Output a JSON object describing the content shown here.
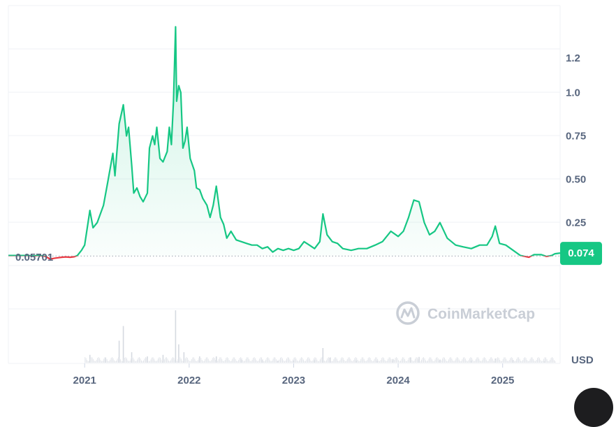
{
  "chart_data": {
    "type": "area",
    "y_ticks": [
      "1.2",
      "1.0",
      "0.75",
      "0.50",
      "0.25"
    ],
    "y_tick_values": [
      1.2,
      1.0,
      0.75,
      0.5,
      0.25
    ],
    "x_ticks": [
      "2021",
      "2022",
      "2023",
      "2024",
      "2025"
    ],
    "x_tick_values": [
      2021.0,
      2022.0,
      2023.0,
      2024.0,
      2025.0
    ],
    "xlim": [
      2020.27,
      2025.55
    ],
    "ylim": [
      -0.5,
      1.45
    ],
    "baseline_value": 0.05701,
    "baseline_label": "0.05701",
    "current_value": 0.074,
    "current_label": "0.074",
    "currency": "USD",
    "grid": true,
    "colors": {
      "up": "#16c784",
      "down": "#ea3943",
      "fill": "#16c784",
      "badge": "#16c784"
    },
    "price": [
      [
        2020.27,
        0.06
      ],
      [
        2020.45,
        0.06
      ],
      [
        2020.52,
        0.058
      ],
      [
        2020.56,
        0.06
      ],
      [
        2020.62,
        0.056
      ],
      [
        2020.67,
        0.04
      ],
      [
        2020.72,
        0.045
      ],
      [
        2020.78,
        0.05
      ],
      [
        2020.82,
        0.052
      ],
      [
        2020.86,
        0.05
      ],
      [
        2020.9,
        0.053
      ],
      [
        2020.93,
        0.06
      ],
      [
        2020.97,
        0.09
      ],
      [
        2021.0,
        0.12
      ],
      [
        2021.05,
        0.32
      ],
      [
        2021.08,
        0.22
      ],
      [
        2021.12,
        0.25
      ],
      [
        2021.18,
        0.35
      ],
      [
        2021.22,
        0.48
      ],
      [
        2021.27,
        0.65
      ],
      [
        2021.29,
        0.52
      ],
      [
        2021.33,
        0.82
      ],
      [
        2021.37,
        0.93
      ],
      [
        2021.4,
        0.75
      ],
      [
        2021.42,
        0.8
      ],
      [
        2021.45,
        0.58
      ],
      [
        2021.47,
        0.42
      ],
      [
        2021.5,
        0.45
      ],
      [
        2021.53,
        0.4
      ],
      [
        2021.56,
        0.37
      ],
      [
        2021.6,
        0.42
      ],
      [
        2021.62,
        0.68
      ],
      [
        2021.65,
        0.75
      ],
      [
        2021.67,
        0.7
      ],
      [
        2021.69,
        0.8
      ],
      [
        2021.72,
        0.62
      ],
      [
        2021.75,
        0.6
      ],
      [
        2021.79,
        0.66
      ],
      [
        2021.81,
        0.8
      ],
      [
        2021.83,
        0.7
      ],
      [
        2021.85,
        0.95
      ],
      [
        2021.87,
        1.38
      ],
      [
        2021.88,
        0.95
      ],
      [
        2021.9,
        1.04
      ],
      [
        2021.92,
        1.0
      ],
      [
        2021.94,
        0.68
      ],
      [
        2021.96,
        0.72
      ],
      [
        2021.98,
        0.8
      ],
      [
        2022.01,
        0.62
      ],
      [
        2022.05,
        0.55
      ],
      [
        2022.07,
        0.45
      ],
      [
        2022.1,
        0.44
      ],
      [
        2022.13,
        0.39
      ],
      [
        2022.17,
        0.35
      ],
      [
        2022.2,
        0.28
      ],
      [
        2022.23,
        0.35
      ],
      [
        2022.26,
        0.46
      ],
      [
        2022.3,
        0.28
      ],
      [
        2022.33,
        0.24
      ],
      [
        2022.36,
        0.16
      ],
      [
        2022.4,
        0.2
      ],
      [
        2022.45,
        0.15
      ],
      [
        2022.5,
        0.14
      ],
      [
        2022.55,
        0.13
      ],
      [
        2022.6,
        0.12
      ],
      [
        2022.65,
        0.12
      ],
      [
        2022.7,
        0.1
      ],
      [
        2022.75,
        0.11
      ],
      [
        2022.8,
        0.08
      ],
      [
        2022.85,
        0.1
      ],
      [
        2022.9,
        0.09
      ],
      [
        2022.95,
        0.1
      ],
      [
        2023.0,
        0.09
      ],
      [
        2023.05,
        0.1
      ],
      [
        2023.1,
        0.14
      ],
      [
        2023.15,
        0.12
      ],
      [
        2023.2,
        0.1
      ],
      [
        2023.25,
        0.14
      ],
      [
        2023.28,
        0.3
      ],
      [
        2023.32,
        0.18
      ],
      [
        2023.37,
        0.14
      ],
      [
        2023.42,
        0.13
      ],
      [
        2023.47,
        0.1
      ],
      [
        2023.55,
        0.09
      ],
      [
        2023.62,
        0.1
      ],
      [
        2023.7,
        0.1
      ],
      [
        2023.78,
        0.12
      ],
      [
        2023.85,
        0.14
      ],
      [
        2023.93,
        0.2
      ],
      [
        2024.0,
        0.17
      ],
      [
        2024.05,
        0.2
      ],
      [
        2024.1,
        0.28
      ],
      [
        2024.15,
        0.38
      ],
      [
        2024.2,
        0.37
      ],
      [
        2024.25,
        0.25
      ],
      [
        2024.3,
        0.18
      ],
      [
        2024.35,
        0.2
      ],
      [
        2024.4,
        0.25
      ],
      [
        2024.47,
        0.16
      ],
      [
        2024.55,
        0.12
      ],
      [
        2024.62,
        0.11
      ],
      [
        2024.7,
        0.1
      ],
      [
        2024.78,
        0.12
      ],
      [
        2024.85,
        0.12
      ],
      [
        2024.9,
        0.17
      ],
      [
        2024.93,
        0.23
      ],
      [
        2024.97,
        0.13
      ],
      [
        2025.03,
        0.12
      ],
      [
        2025.1,
        0.09
      ],
      [
        2025.17,
        0.06
      ],
      [
        2025.25,
        0.05
      ],
      [
        2025.3,
        0.065
      ],
      [
        2025.37,
        0.065
      ],
      [
        2025.42,
        0.055
      ],
      [
        2025.47,
        0.06
      ],
      [
        2025.5,
        0.07
      ],
      [
        2025.55,
        0.074
      ]
    ],
    "volume": [
      [
        2021.05,
        0.15
      ],
      [
        2021.2,
        0.1
      ],
      [
        2021.33,
        0.42
      ],
      [
        2021.37,
        0.7
      ],
      [
        2021.45,
        0.2
      ],
      [
        2021.6,
        0.12
      ],
      [
        2021.75,
        0.15
      ],
      [
        2021.87,
        1.0
      ],
      [
        2021.9,
        0.35
      ],
      [
        2021.95,
        0.2
      ],
      [
        2022.1,
        0.12
      ],
      [
        2022.26,
        0.12
      ],
      [
        2022.5,
        0.06
      ],
      [
        2022.7,
        0.05
      ],
      [
        2022.85,
        0.04
      ],
      [
        2023.0,
        0.04
      ],
      [
        2023.2,
        0.05
      ],
      [
        2023.28,
        0.28
      ],
      [
        2023.35,
        0.1
      ],
      [
        2023.6,
        0.04
      ],
      [
        2023.8,
        0.04
      ],
      [
        2023.95,
        0.07
      ],
      [
        2024.12,
        0.1
      ],
      [
        2024.2,
        0.11
      ],
      [
        2024.4,
        0.06
      ],
      [
        2024.7,
        0.04
      ],
      [
        2024.93,
        0.08
      ],
      [
        2025.1,
        0.05
      ],
      [
        2025.4,
        0.03
      ]
    ]
  },
  "watermark": {
    "text": "CoinMarketCap"
  }
}
